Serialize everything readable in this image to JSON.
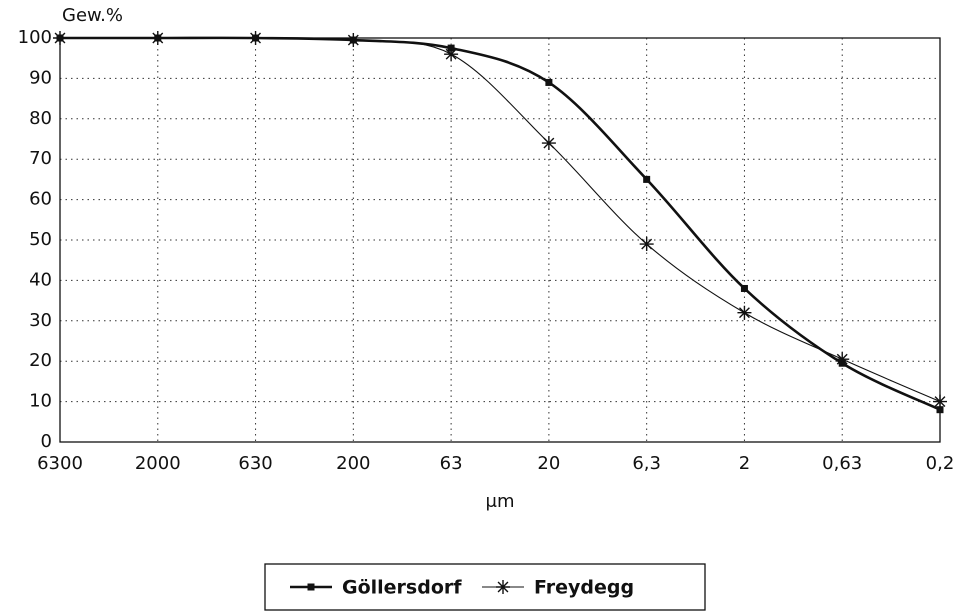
{
  "chart_data": {
    "type": "line",
    "y_label": "Gew.%",
    "x_label": "μm",
    "categories": [
      "6300",
      "2000",
      "630",
      "200",
      "63",
      "20",
      "6,3",
      "2",
      "0,63",
      "0,2"
    ],
    "series": [
      {
        "name": "Göllersdorf",
        "color": "#111111",
        "width": 2.6,
        "marker": "dot",
        "values": [
          100,
          100,
          100,
          99.5,
          97.5,
          89,
          65,
          38,
          19.5,
          8
        ]
      },
      {
        "name": "Freydegg",
        "color": "#111111",
        "width": 1.1,
        "marker": "asterisk",
        "values": [
          100,
          100,
          100,
          99.5,
          96,
          74,
          49,
          32,
          20.5,
          10
        ]
      }
    ],
    "ylim": [
      0,
      100
    ],
    "yticks": [
      0,
      10,
      20,
      30,
      40,
      50,
      60,
      70,
      80,
      90,
      100
    ],
    "grid": true,
    "legend": "bottom"
  }
}
